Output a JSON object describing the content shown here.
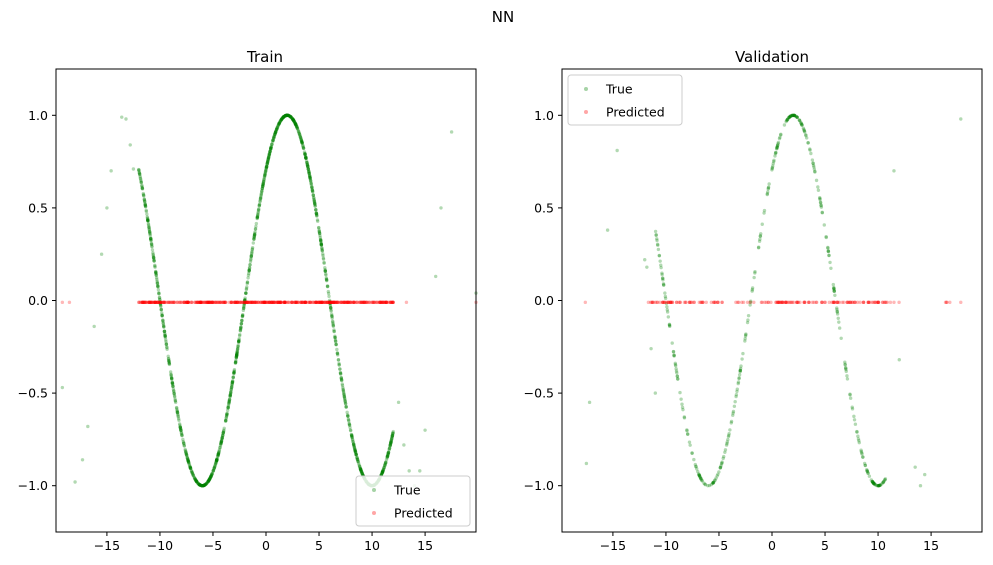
{
  "figure": {
    "suptitle": "NN"
  },
  "chart_data": [
    {
      "type": "scatter",
      "title": "Train",
      "xlabel": "",
      "ylabel": "",
      "xlim": [
        -19.8,
        19.8
      ],
      "ylim": [
        -1.25,
        1.25
      ],
      "xticks": [
        -15,
        -10,
        -5,
        0,
        5,
        10,
        15
      ],
      "yticks": [
        -1.0,
        -0.5,
        0.0,
        0.5,
        1.0
      ],
      "xtick_labels": [
        "−15",
        "−10",
        "−5",
        "0",
        "5",
        "10",
        "15"
      ],
      "ytick_labels": [
        "−1.0",
        "−0.5",
        "0.0",
        "0.5",
        "1.0"
      ],
      "legend_position": "lower-right",
      "series": [
        {
          "name": "True",
          "color": "#008000",
          "relation": "y = sin(pi*(x+2)/8)",
          "x_dense_range": [
            -12,
            12
          ],
          "x_sparse": [
            -19.2,
            -18.0,
            -17.3,
            -16.8,
            -16.2,
            -15.5,
            -15.0,
            -14.6,
            -13.6,
            -13.2,
            -12.8,
            -12.5,
            12.5,
            13.0,
            13.5,
            14.0,
            14.5,
            15.0,
            16.0,
            16.5,
            17.5,
            19.8
          ],
          "y_sparse": [
            -0.47,
            -0.98,
            -0.86,
            -0.68,
            -0.14,
            0.25,
            0.5,
            0.7,
            0.99,
            0.98,
            0.84,
            0.71,
            -0.55,
            -0.78,
            -0.92,
            -1.0,
            -0.92,
            -0.7,
            0.13,
            0.5,
            0.91,
            0.04
          ]
        },
        {
          "name": "Predicted",
          "color": "#ff0000",
          "value": -0.01,
          "x_range": [
            -19.2,
            19.8
          ]
        }
      ]
    },
    {
      "type": "scatter",
      "title": "Validation",
      "xlabel": "",
      "ylabel": "",
      "xlim": [
        -19.8,
        19.8
      ],
      "ylim": [
        -1.25,
        1.25
      ],
      "xticks": [
        -15,
        -10,
        -5,
        0,
        5,
        10,
        15
      ],
      "yticks": [
        -1.0,
        -0.5,
        0.0,
        0.5,
        1.0
      ],
      "xtick_labels": [
        "−15",
        "−10",
        "−5",
        "0",
        "5",
        "10",
        "15"
      ],
      "ytick_labels": [
        "−1.0",
        "−0.5",
        "0.0",
        "0.5",
        "1.0"
      ],
      "legend_position": "upper-left",
      "series": [
        {
          "name": "True",
          "color": "#008000",
          "relation": "y = sin(pi*(x+2)/8)",
          "x_dense_range": [
            -11,
            11
          ],
          "x_sparse": [
            -17.5,
            -17.2,
            -15.5,
            -14.6,
            -12.0,
            -11.8,
            -11.4,
            -11.0,
            11.5,
            12.0,
            13.5,
            14.0,
            14.4,
            17.8
          ],
          "y_sparse": [
            -0.88,
            -0.55,
            0.38,
            0.81,
            0.22,
            0.18,
            -0.26,
            -0.5,
            0.7,
            -0.32,
            -0.9,
            -1.0,
            -0.94,
            0.98
          ]
        },
        {
          "name": "Predicted",
          "color": "#ff0000",
          "value": -0.01,
          "x_range": [
            -17.6,
            17.8
          ]
        }
      ]
    }
  ]
}
